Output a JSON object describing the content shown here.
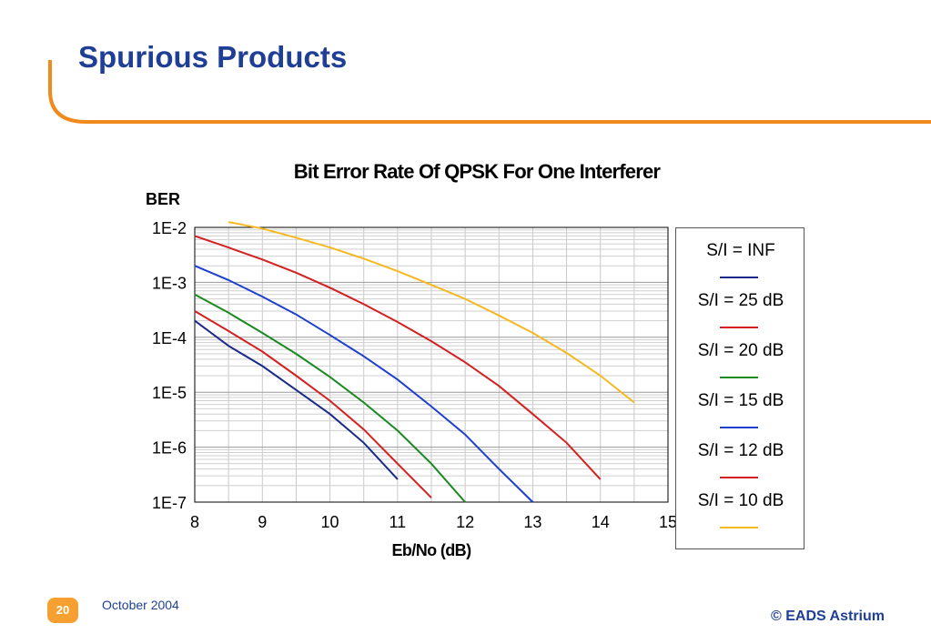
{
  "slide": {
    "title": "Spurious Products",
    "page_number": "20",
    "date": "October 2004",
    "copyright": "© EADS Astrium"
  },
  "colors": {
    "title": "#1f3f96",
    "accent": "#f08a1c",
    "badge": "#f5a030"
  },
  "chart_data": {
    "type": "line",
    "title": "Bit Error Rate Of QPSK For One Interferer",
    "xlabel": "Eb/No (dB)",
    "ylabel": "BER",
    "xlim": [
      8,
      15
    ],
    "ylim": [
      1e-07,
      0.01
    ],
    "y_scale": "log",
    "x_ticks": [
      "8",
      "9",
      "10",
      "11",
      "12",
      "13",
      "14",
      "15"
    ],
    "y_ticks": [
      "1E-2",
      "1E-3",
      "1E-4",
      "1E-5",
      "1E-6",
      "1E-7"
    ],
    "grid": true,
    "legend_position": "right",
    "series": [
      {
        "name": "S/I = INF",
        "color": "#1a2a8a",
        "points": [
          [
            8,
            0.0002
          ],
          [
            8.5,
            7e-05
          ],
          [
            9,
            3e-05
          ],
          [
            9.5,
            1.1e-05
          ],
          [
            10,
            4e-06
          ],
          [
            10.5,
            1.2e-06
          ],
          [
            11,
            2.6e-07
          ]
        ]
      },
      {
        "name": "S/I = 25 dB",
        "color": "#d42020",
        "points": [
          [
            8,
            0.0003
          ],
          [
            8.5,
            0.00013
          ],
          [
            9,
            5.5e-05
          ],
          [
            9.5,
            2e-05
          ],
          [
            10,
            7e-06
          ],
          [
            10.5,
            2.1e-06
          ],
          [
            11,
            5e-07
          ],
          [
            11.5,
            1.2e-07
          ]
        ]
      },
      {
        "name": "S/I = 20 dB",
        "color": "#1a8a20",
        "points": [
          [
            8,
            0.0006
          ],
          [
            8.5,
            0.00028
          ],
          [
            9,
            0.00012
          ],
          [
            9.5,
            5e-05
          ],
          [
            10,
            1.9e-05
          ],
          [
            10.5,
            6.5e-06
          ],
          [
            11,
            2e-06
          ],
          [
            11.5,
            5e-07
          ],
          [
            12,
            1e-07
          ]
        ]
      },
      {
        "name": "S/I = 15 dB",
        "color": "#1f3fd0",
        "points": [
          [
            8,
            0.002
          ],
          [
            8.5,
            0.0011
          ],
          [
            9,
            0.00055
          ],
          [
            9.5,
            0.00026
          ],
          [
            10,
            0.00011
          ],
          [
            10.5,
            4.5e-05
          ],
          [
            11,
            1.7e-05
          ],
          [
            11.5,
            5.5e-06
          ],
          [
            12,
            1.7e-06
          ],
          [
            12.5,
            4e-07
          ],
          [
            13,
            1e-07
          ]
        ]
      },
      {
        "name": "S/I = 12 dB",
        "color": "#d42020",
        "points": [
          [
            8,
            0.007
          ],
          [
            8.5,
            0.0043
          ],
          [
            9,
            0.0026
          ],
          [
            9.5,
            0.0015
          ],
          [
            10,
            0.0008
          ],
          [
            10.5,
            0.0004
          ],
          [
            11,
            0.00019
          ],
          [
            11.5,
            8.5e-05
          ],
          [
            12,
            3.5e-05
          ],
          [
            12.5,
            1.3e-05
          ],
          [
            13,
            4e-06
          ],
          [
            13.5,
            1.2e-06
          ],
          [
            14,
            2.6e-07
          ]
        ]
      },
      {
        "name": "S/I = 10 dB",
        "color": "#f5b820",
        "points": [
          [
            8.5,
            0.0125
          ],
          [
            9,
            0.0095
          ],
          [
            9.5,
            0.0065
          ],
          [
            10,
            0.0043
          ],
          [
            10.5,
            0.0027
          ],
          [
            11,
            0.0016
          ],
          [
            11.5,
            0.0009
          ],
          [
            12,
            0.0005
          ],
          [
            12.5,
            0.00025
          ],
          [
            13,
            0.00012
          ],
          [
            13.5,
            5.2e-05
          ],
          [
            14,
            2e-05
          ],
          [
            14.5,
            6.5e-06
          ]
        ]
      }
    ]
  }
}
